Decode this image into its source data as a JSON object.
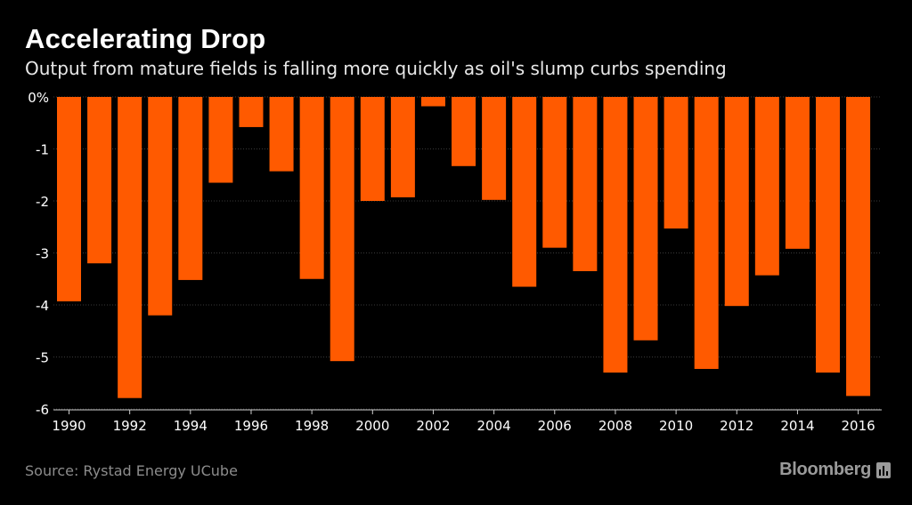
{
  "header": {
    "title": "Accelerating Drop",
    "subtitle": "Output from mature fields is falling more quickly as oil's slump curbs spending"
  },
  "footer": {
    "source": "Source: Rystad Energy UCube",
    "brand": "Bloomberg",
    "brand_icon": "bloomberg-chart-icon"
  },
  "colors": {
    "background": "#000000",
    "bar": "#ff5a00",
    "grid": "#3a3a3a",
    "text": "#ffffff",
    "muted": "#8c8c8c"
  },
  "chart_data": {
    "type": "bar",
    "categories": [
      "1990",
      "1991",
      "1992",
      "1993",
      "1994",
      "1995",
      "1996",
      "1997",
      "1998",
      "1999",
      "2000",
      "2001",
      "2002",
      "2003",
      "2004",
      "2005",
      "2006",
      "2007",
      "2008",
      "2009",
      "2010",
      "2011",
      "2012",
      "2013",
      "2014",
      "2015",
      "2016"
    ],
    "values": [
      -3.93,
      -3.2,
      -5.79,
      -4.2,
      -3.52,
      -1.65,
      -0.58,
      -1.43,
      -3.5,
      -5.08,
      -2.0,
      -1.93,
      -0.18,
      -1.33,
      -1.98,
      -3.65,
      -2.9,
      -3.35,
      -5.3,
      -4.68,
      -2.53,
      -5.23,
      -4.02,
      -3.43,
      -2.92,
      -5.3,
      -5.75
    ],
    "x_tick_labels": [
      "1990",
      "1992",
      "1994",
      "1996",
      "1998",
      "2000",
      "2002",
      "2004",
      "2006",
      "2008",
      "2010",
      "2012",
      "2014",
      "2016"
    ],
    "y_ticks": [
      0,
      -1,
      -2,
      -3,
      -4,
      -5,
      -6
    ],
    "y_tick_labels": [
      "0%",
      "-1",
      "-2",
      "-3",
      "-4",
      "-5",
      "-6"
    ],
    "ylim": [
      -6,
      0
    ],
    "title": "Accelerating Drop",
    "subtitle": "Output from mature fields is falling more quickly as oil's slump curbs spending",
    "xlabel": "",
    "ylabel": "",
    "grid": true,
    "legend": "none"
  }
}
